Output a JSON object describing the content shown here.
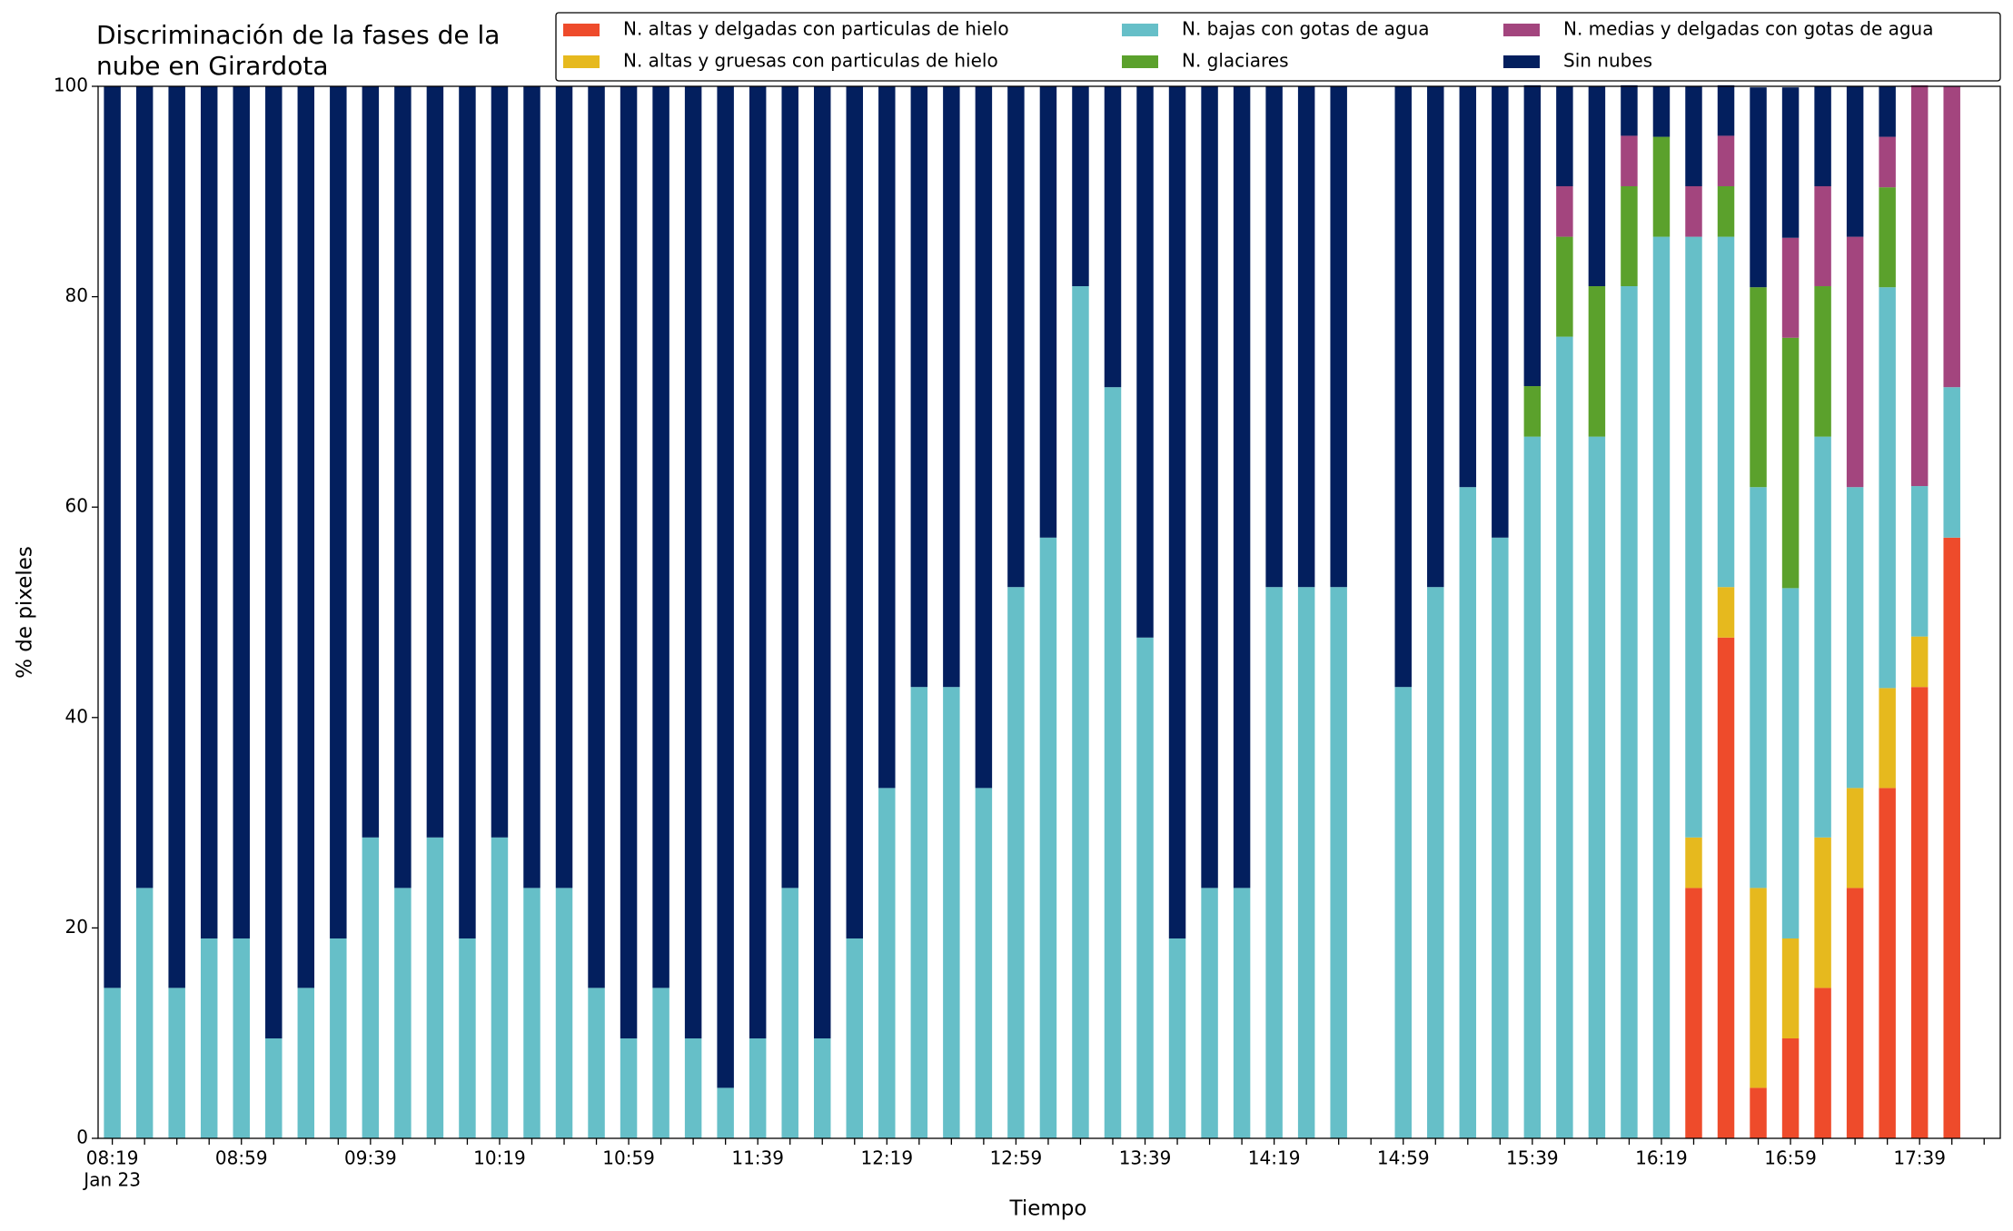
{
  "chart_data": {
    "type": "stacked_bar",
    "title": "Discriminación de la fases de la\nnube en Girardota",
    "xlabel": "Tiempo",
    "ylabel": "% de pixeles",
    "x_date_label": "Jan 23",
    "categories": [
      "08:19",
      null,
      null,
      null,
      "08:59",
      null,
      null,
      null,
      "09:39",
      null,
      null,
      null,
      "10:19",
      null,
      null,
      null,
      "10:59",
      null,
      null,
      null,
      "11:39",
      null,
      null,
      null,
      "12:19",
      null,
      null,
      null,
      "12:59",
      null,
      null,
      null,
      "13:39",
      null,
      null,
      null,
      "14:19",
      null,
      null,
      null,
      "14:59",
      null,
      null,
      null,
      "15:39",
      null,
      null,
      null,
      "16:19",
      null,
      null,
      null,
      "16:59",
      null,
      null,
      null,
      "17:39",
      null,
      null
    ],
    "series": [
      {
        "name": "N. altas y delgadas con particulas de hielo",
        "color": "#EE4B2B",
        "values": [
          0,
          0,
          0,
          0,
          0,
          0,
          0,
          0,
          0,
          0,
          0,
          0,
          0,
          0,
          0,
          0,
          0,
          0,
          0,
          0,
          0,
          0,
          0,
          0,
          0,
          0,
          0,
          0,
          0,
          0,
          0,
          0,
          0,
          0,
          0,
          0,
          0,
          0,
          0,
          null,
          0,
          0,
          0,
          0,
          0,
          0,
          0,
          0,
          0,
          23.8,
          47.6,
          4.8,
          9.5,
          14.3,
          23.8,
          33.3,
          42.9,
          57.1,
          null
        ]
      },
      {
        "name": "N. altas y gruesas con particulas de hielo",
        "color": "#E6B91E",
        "values": [
          0,
          0,
          0,
          0,
          0,
          0,
          0,
          0,
          0,
          0,
          0,
          0,
          0,
          0,
          0,
          0,
          0,
          0,
          0,
          0,
          0,
          0,
          0,
          0,
          0,
          0,
          0,
          0,
          0,
          0,
          0,
          0,
          0,
          0,
          0,
          0,
          0,
          0,
          0,
          null,
          0,
          0,
          0,
          0,
          0,
          0,
          0,
          0,
          0,
          4.8,
          4.8,
          19.0,
          9.5,
          14.3,
          9.5,
          9.5,
          4.8,
          0,
          null
        ]
      },
      {
        "name": "N. bajas con gotas de agua",
        "color": "#66BFC8",
        "values": [
          14.3,
          23.8,
          14.3,
          19.0,
          19.0,
          9.5,
          14.3,
          19.0,
          28.6,
          23.8,
          28.6,
          19.0,
          28.6,
          23.8,
          23.8,
          14.3,
          9.5,
          14.3,
          9.5,
          4.8,
          9.5,
          23.8,
          9.5,
          19.0,
          33.3,
          42.9,
          42.9,
          33.3,
          52.4,
          57.1,
          81.0,
          71.4,
          47.6,
          19.0,
          23.8,
          23.8,
          52.4,
          52.4,
          52.4,
          null,
          42.9,
          52.4,
          61.9,
          57.1,
          66.7,
          76.2,
          66.7,
          81.0,
          85.7,
          57.1,
          33.3,
          38.1,
          33.3,
          38.1,
          28.6,
          38.1,
          14.3,
          14.3,
          null
        ]
      },
      {
        "name": "N. glaciares",
        "color": "#5BA12C",
        "values": [
          0,
          0,
          0,
          0,
          0,
          0,
          0,
          0,
          0,
          0,
          0,
          0,
          0,
          0,
          0,
          0,
          0,
          0,
          0,
          0,
          0,
          0,
          0,
          0,
          0,
          0,
          0,
          0,
          0,
          0,
          0,
          0,
          0,
          0,
          0,
          0,
          0,
          0,
          0,
          null,
          0,
          0,
          0,
          0,
          4.8,
          9.5,
          14.3,
          9.5,
          9.5,
          0,
          4.8,
          19.0,
          23.8,
          14.3,
          0,
          9.5,
          0,
          0,
          null
        ]
      },
      {
        "name": "N. medias y delgadas con gotas de agua",
        "color": "#A3457E",
        "values": [
          0,
          0,
          0,
          0,
          0,
          0,
          0,
          0,
          0,
          0,
          0,
          0,
          0,
          0,
          0,
          0,
          0,
          0,
          0,
          0,
          0,
          0,
          0,
          0,
          0,
          0,
          0,
          0,
          0,
          0,
          0,
          0,
          0,
          0,
          0,
          0,
          0,
          0,
          0,
          null,
          0,
          0,
          0,
          0,
          0,
          4.8,
          0,
          4.8,
          0,
          4.8,
          4.8,
          0,
          9.5,
          9.5,
          23.8,
          4.8,
          38.1,
          28.6,
          null
        ]
      },
      {
        "name": "Sin nubes",
        "color": "#031F5E",
        "values": [
          85.7,
          76.2,
          85.7,
          81.0,
          81.0,
          90.5,
          85.7,
          81.0,
          71.4,
          76.2,
          71.4,
          81.0,
          71.4,
          76.2,
          76.2,
          85.7,
          90.5,
          85.7,
          90.5,
          95.2,
          90.5,
          76.2,
          90.5,
          81.0,
          66.7,
          57.1,
          57.1,
          66.7,
          47.6,
          42.9,
          19.0,
          28.6,
          52.4,
          81.0,
          76.2,
          76.2,
          47.6,
          47.6,
          47.6,
          null,
          57.1,
          47.6,
          38.1,
          42.9,
          28.6,
          9.5,
          19.0,
          4.8,
          4.8,
          9.5,
          4.8,
          19.0,
          14.3,
          9.5,
          14.3,
          4.8,
          0,
          0,
          null
        ]
      }
    ],
    "ylim": [
      0,
      100
    ],
    "yticks": [
      0,
      20,
      40,
      60,
      80,
      100
    ],
    "grid": false,
    "legend": "upper right"
  }
}
